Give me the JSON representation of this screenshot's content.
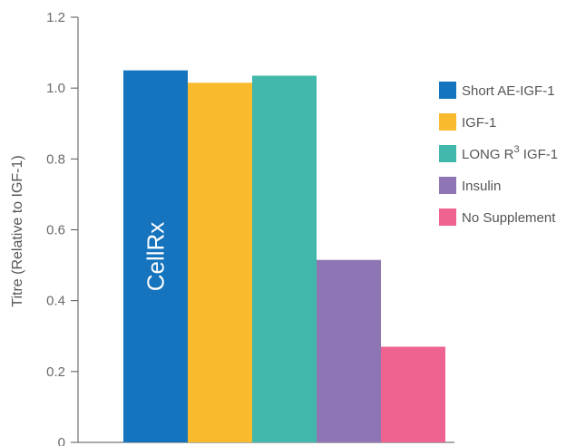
{
  "chart_data": {
    "type": "bar",
    "categories": [
      "Short AE-IGF-1",
      "IGF-1",
      "LONG R3 IGF-1",
      "Insulin",
      "No Supplement"
    ],
    "values": [
      1.05,
      1.015,
      1.035,
      0.515,
      0.27
    ],
    "colors": [
      "#1574bd",
      "#f9bb2d",
      "#41b8ab",
      "#8e76b4",
      "#ef6391"
    ],
    "legend": [
      {
        "label": "Short AE-IGF-1"
      },
      {
        "label": "IGF-1"
      },
      {
        "label": "LONG R",
        "sup": "3",
        "suffix": " IGF-1"
      },
      {
        "label": "Insulin"
      },
      {
        "label": "No Supplement"
      }
    ],
    "ylabel": "Titre (Relative to IGF-1)",
    "yticks": [
      "0",
      "0.2",
      "0.4",
      "0.6",
      "0.8",
      "1.0",
      "1.2"
    ],
    "ylim": [
      0,
      1.2
    ],
    "legend_position": "right",
    "grid": false,
    "watermark": "CellRx"
  }
}
